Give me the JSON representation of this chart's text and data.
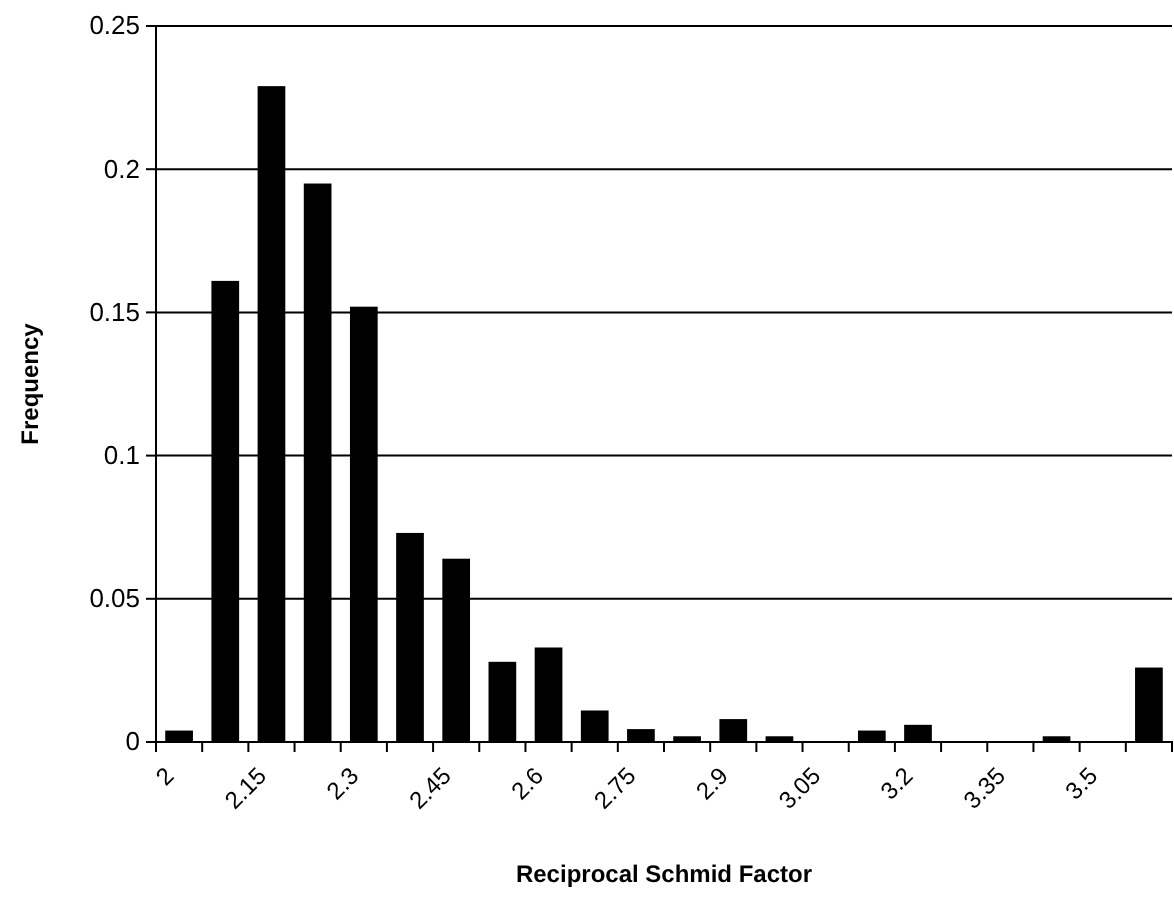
{
  "chart_data": {
    "type": "histogram",
    "xlabel": "Reciprocal Schmid Factor",
    "ylabel": "Frequency",
    "bins": [
      2,
      2.075,
      2.15,
      2.225,
      2.3,
      2.375,
      2.45,
      2.525,
      2.6,
      2.675,
      2.75,
      2.825,
      2.9,
      2.975,
      3.05,
      3.125,
      3.2,
      3.275,
      3.35,
      3.425,
      3.5,
      3.575,
      3.65
    ],
    "values": [
      0.004,
      0.161,
      0.229,
      0.195,
      0.152,
      0.073,
      0.064,
      0.028,
      0.033,
      0.011,
      0.0045,
      0.002,
      0.008,
      0.002,
      0,
      0.004,
      0.006,
      0,
      0,
      0.002,
      0,
      0.026
    ],
    "color": "#000000",
    "xlim": [
      2,
      3.65
    ],
    "xticks": [
      2,
      {
        "value": 2.075,
        "label": null
      },
      2.15,
      {
        "value": 2.225,
        "label": null
      },
      2.3,
      {
        "value": 2.375,
        "label": null
      },
      2.45,
      {
        "value": 2.525,
        "label": null
      },
      2.6,
      {
        "value": 2.675,
        "label": null
      },
      2.75,
      {
        "value": 2.825,
        "label": null
      },
      2.9,
      {
        "value": 2.975,
        "label": null
      },
      3.05,
      {
        "value": 3.125,
        "label": null
      },
      3.2,
      {
        "value": 3.275,
        "label": null
      },
      3.35,
      {
        "value": 3.425,
        "label": null
      },
      3.5,
      {
        "value": 3.575,
        "label": null
      }
    ],
    "ylim": [
      0,
      0.25
    ],
    "yticks": [
      0,
      0.05,
      0.1,
      0.15,
      0.2,
      0.25
    ],
    "grid": "y"
  }
}
